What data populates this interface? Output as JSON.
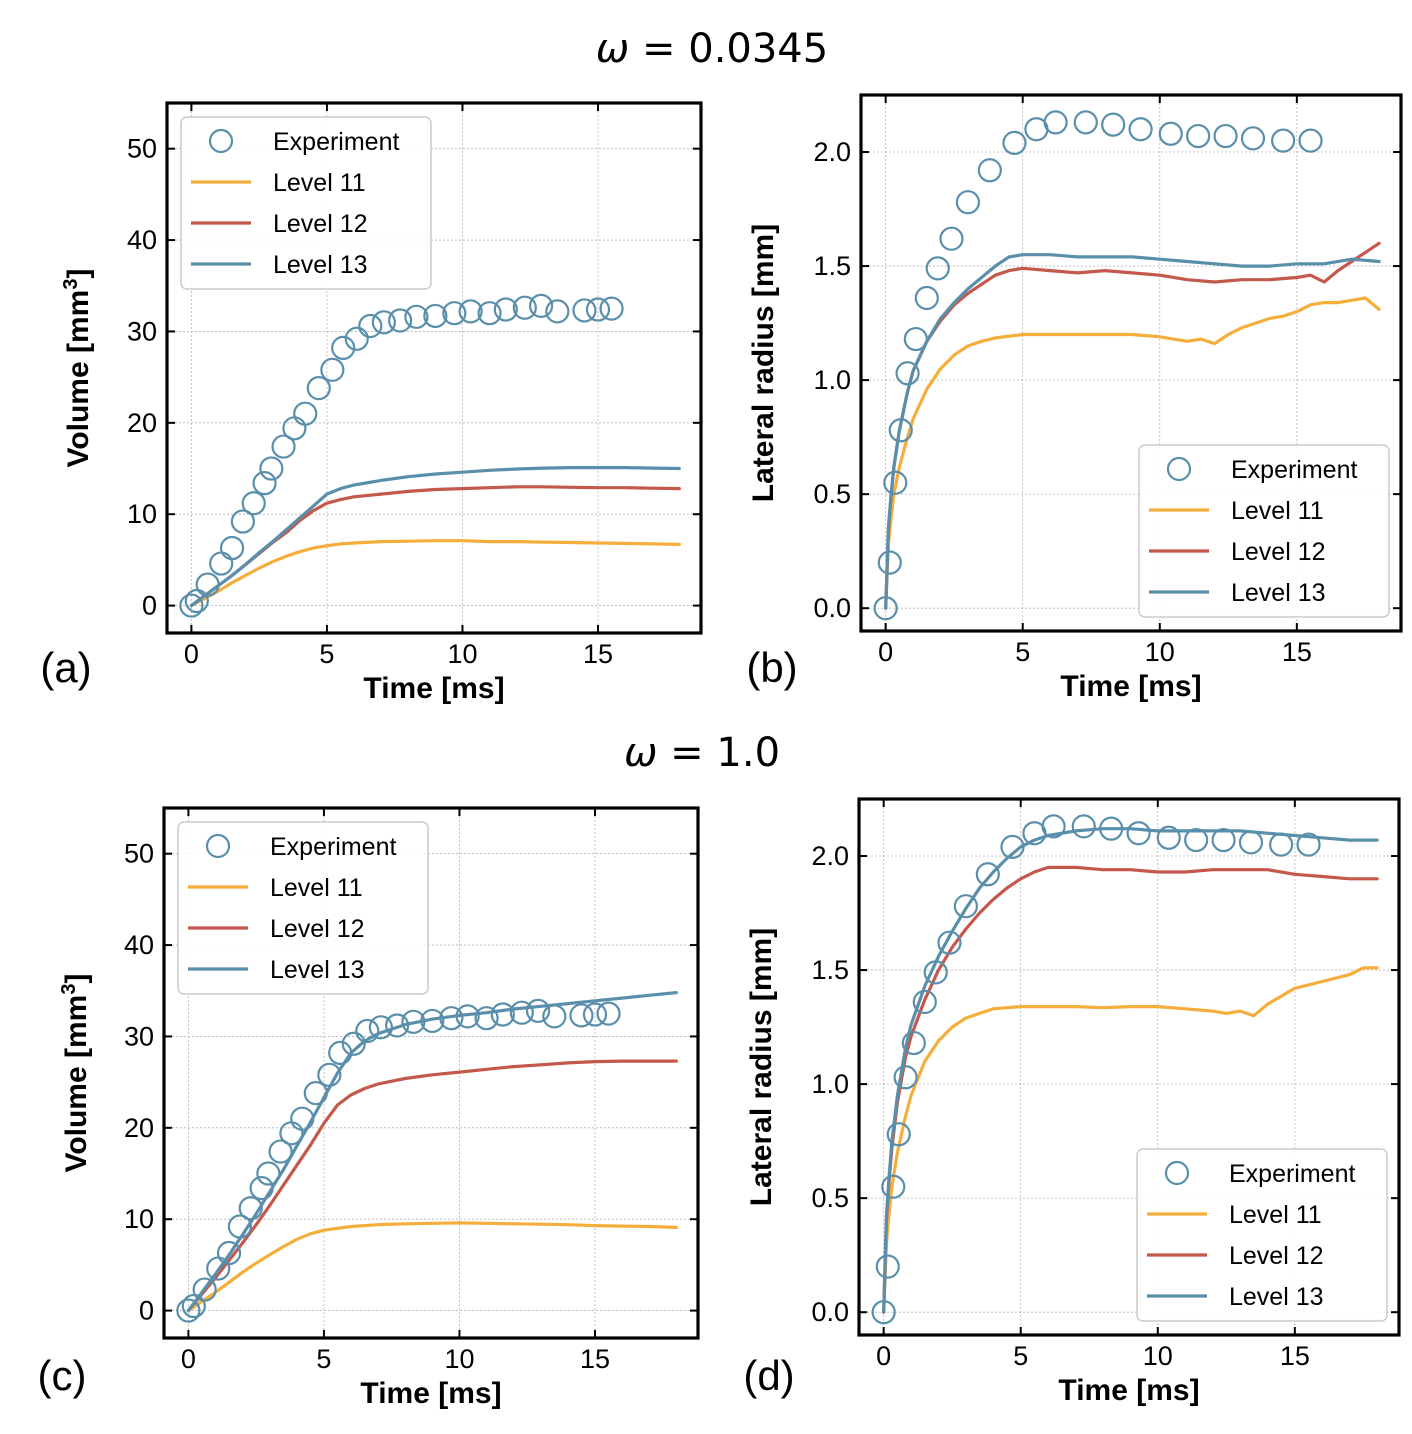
{
  "figure": {
    "titles": [
      {
        "omega_symbol": "ω",
        "text": " = 0.0345"
      },
      {
        "omega_symbol": "ω",
        "text": " = 1.0"
      }
    ]
  },
  "colors": {
    "experiment": "#5a8fab",
    "level11": "#f5ae3c",
    "level12": "#c4584a",
    "level13": "#5a8fab",
    "grid": "#b4b4b4",
    "axes": "#000000"
  },
  "chart_data": [
    {
      "panel": "(a)",
      "type": "line",
      "xlabel": "Time [ms]",
      "ylabel": "Volume [mm",
      "ylabel_sup": "3",
      "ylabel_close": "]",
      "xlim": [
        -0.9,
        18.8
      ],
      "ylim": [
        -3,
        55
      ],
      "xticks": [
        0,
        5,
        10,
        15
      ],
      "yticks": [
        0,
        10,
        20,
        30,
        40,
        50
      ],
      "legend_position": "top-left",
      "legend": [
        "Experiment",
        "Level 11",
        "Level 12",
        "Level 13"
      ],
      "experiment": {
        "name": "Experiment",
        "x": [
          0,
          0.2,
          0.6,
          1.1,
          1.5,
          1.9,
          2.3,
          2.7,
          2.95,
          3.4,
          3.8,
          4.2,
          4.7,
          5.2,
          5.6,
          6.1,
          6.6,
          7.1,
          7.7,
          8.3,
          9.0,
          9.7,
          10.3,
          11.0,
          11.6,
          12.3,
          12.9,
          13.5,
          14.5,
          15.0,
          15.5
        ],
        "y": [
          0,
          0.5,
          2.3,
          4.6,
          6.3,
          9.2,
          11.2,
          13.4,
          15.0,
          17.4,
          19.4,
          21.0,
          23.8,
          25.8,
          28.2,
          29.2,
          30.6,
          31.0,
          31.2,
          31.6,
          31.7,
          32.0,
          32.2,
          32.0,
          32.4,
          32.6,
          32.8,
          32.2,
          32.3,
          32.4,
          32.5
        ]
      },
      "series": [
        {
          "name": "Level 11",
          "x": [
            0,
            0.5,
            1,
            1.5,
            2,
            2.5,
            3,
            3.5,
            4,
            4.5,
            5,
            5.5,
            6,
            7,
            8,
            9,
            10,
            11,
            12,
            13,
            14,
            15,
            16,
            17,
            18
          ],
          "y": [
            0,
            0.8,
            1.6,
            2.5,
            3.3,
            4.1,
            4.8,
            5.4,
            5.9,
            6.3,
            6.55,
            6.75,
            6.85,
            7.0,
            7.05,
            7.1,
            7.1,
            7.0,
            7.0,
            6.95,
            6.9,
            6.85,
            6.8,
            6.75,
            6.7
          ]
        },
        {
          "name": "Level 12",
          "x": [
            0,
            0.5,
            1,
            1.5,
            2,
            2.5,
            3,
            3.5,
            4,
            4.5,
            5,
            5.5,
            6,
            7,
            8,
            9,
            10,
            11,
            12,
            13,
            14,
            15,
            16,
            17,
            18
          ],
          "y": [
            0,
            1.1,
            2.2,
            3.3,
            4.5,
            5.7,
            6.9,
            8.0,
            9.3,
            10.4,
            11.2,
            11.6,
            11.9,
            12.2,
            12.5,
            12.7,
            12.8,
            12.9,
            13.0,
            13.0,
            12.95,
            12.9,
            12.9,
            12.85,
            12.8
          ]
        },
        {
          "name": "Level 13",
          "x": [
            0,
            0.5,
            1,
            1.5,
            2,
            2.5,
            3,
            3.5,
            4,
            4.5,
            5,
            5.5,
            6,
            7,
            8,
            9,
            10,
            11,
            12,
            13,
            14,
            15,
            16,
            17,
            18
          ],
          "y": [
            0,
            1.1,
            2.2,
            3.3,
            4.5,
            5.8,
            7.0,
            8.3,
            9.6,
            10.9,
            12.2,
            12.8,
            13.2,
            13.7,
            14.1,
            14.4,
            14.6,
            14.8,
            14.95,
            15.05,
            15.1,
            15.1,
            15.1,
            15.05,
            15.0
          ]
        }
      ]
    },
    {
      "panel": "(b)",
      "type": "line",
      "xlabel": "Time [ms]",
      "ylabel": "Lateral radius [mm]",
      "xlim": [
        -0.9,
        18.8
      ],
      "ylim": [
        -0.1,
        2.25
      ],
      "xticks": [
        0,
        5,
        10,
        15
      ],
      "yticks": [
        0.0,
        0.5,
        1.0,
        1.5,
        2.0
      ],
      "legend_position": "bottom-right",
      "legend": [
        "Experiment",
        "Level 11",
        "Level 12",
        "Level 13"
      ],
      "experiment": {
        "name": "Experiment",
        "x": [
          0,
          0.15,
          0.35,
          0.55,
          0.8,
          1.1,
          1.5,
          1.9,
          2.4,
          3.0,
          3.8,
          4.7,
          5.5,
          6.2,
          7.3,
          8.3,
          9.3,
          10.4,
          11.4,
          12.4,
          13.4,
          14.5,
          15.5
        ],
        "y": [
          0,
          0.2,
          0.55,
          0.78,
          1.03,
          1.18,
          1.36,
          1.49,
          1.62,
          1.78,
          1.92,
          2.04,
          2.1,
          2.13,
          2.13,
          2.12,
          2.1,
          2.08,
          2.07,
          2.07,
          2.06,
          2.05,
          2.05
        ]
      },
      "series": [
        {
          "name": "Level 11",
          "x": [
            0,
            0.1,
            0.2,
            0.3,
            0.5,
            0.8,
            1,
            1.5,
            2,
            2.5,
            3,
            3.5,
            4,
            5,
            6,
            7,
            8,
            9,
            10,
            11,
            11.5,
            12,
            12.5,
            13,
            13.5,
            14,
            14.5,
            15,
            15.5,
            16,
            16.5,
            17,
            17.5,
            18
          ],
          "y": [
            0,
            0.28,
            0.4,
            0.5,
            0.62,
            0.75,
            0.83,
            0.96,
            1.05,
            1.11,
            1.15,
            1.17,
            1.185,
            1.2,
            1.2,
            1.2,
            1.2,
            1.2,
            1.19,
            1.17,
            1.18,
            1.16,
            1.2,
            1.23,
            1.25,
            1.27,
            1.28,
            1.3,
            1.33,
            1.34,
            1.34,
            1.35,
            1.36,
            1.31
          ]
        },
        {
          "name": "Level 12",
          "x": [
            0,
            0.1,
            0.2,
            0.3,
            0.5,
            0.8,
            1,
            1.5,
            2,
            2.5,
            3,
            3.5,
            4,
            4.5,
            5,
            6,
            7,
            8,
            9,
            10,
            11,
            12,
            13,
            14,
            15,
            15.5,
            16,
            16.5,
            17,
            17.5,
            18
          ],
          "y": [
            0,
            0.35,
            0.5,
            0.62,
            0.78,
            0.95,
            1.04,
            1.17,
            1.26,
            1.33,
            1.38,
            1.42,
            1.46,
            1.48,
            1.49,
            1.48,
            1.47,
            1.48,
            1.47,
            1.46,
            1.44,
            1.43,
            1.44,
            1.44,
            1.45,
            1.46,
            1.43,
            1.48,
            1.52,
            1.56,
            1.6
          ]
        },
        {
          "name": "Level 13",
          "x": [
            0,
            0.1,
            0.2,
            0.3,
            0.5,
            0.8,
            1,
            1.5,
            2,
            2.5,
            3,
            3.5,
            4,
            4.5,
            5,
            6,
            7,
            8,
            9,
            10,
            11,
            12,
            13,
            14,
            15,
            16,
            17,
            18
          ],
          "y": [
            0,
            0.35,
            0.5,
            0.62,
            0.78,
            0.95,
            1.04,
            1.17,
            1.27,
            1.34,
            1.4,
            1.45,
            1.5,
            1.54,
            1.55,
            1.55,
            1.54,
            1.54,
            1.54,
            1.53,
            1.52,
            1.51,
            1.5,
            1.5,
            1.51,
            1.51,
            1.53,
            1.52
          ]
        }
      ]
    },
    {
      "panel": "(c)",
      "type": "line",
      "xlabel": "Time [ms]",
      "ylabel": "Volume [mm",
      "ylabel_sup": "3",
      "ylabel_close": "]",
      "xlim": [
        -0.9,
        18.8
      ],
      "ylim": [
        -3,
        55
      ],
      "xticks": [
        0,
        5,
        10,
        15
      ],
      "yticks": [
        0,
        10,
        20,
        30,
        40,
        50
      ],
      "legend_position": "top-left",
      "legend": [
        "Experiment",
        "Level 11",
        "Level 12",
        "Level 13"
      ],
      "experiment": {
        "name": "Experiment",
        "x": [
          0,
          0.2,
          0.6,
          1.1,
          1.5,
          1.9,
          2.3,
          2.7,
          2.95,
          3.4,
          3.8,
          4.2,
          4.7,
          5.2,
          5.6,
          6.1,
          6.6,
          7.1,
          7.7,
          8.3,
          9.0,
          9.7,
          10.3,
          11.0,
          11.6,
          12.3,
          12.9,
          13.5,
          14.5,
          15.0,
          15.5
        ],
        "y": [
          0,
          0.5,
          2.3,
          4.6,
          6.3,
          9.2,
          11.2,
          13.4,
          15.0,
          17.4,
          19.4,
          21.0,
          23.8,
          25.8,
          28.2,
          29.2,
          30.6,
          31.0,
          31.2,
          31.6,
          31.7,
          32.0,
          32.2,
          32.0,
          32.4,
          32.6,
          32.8,
          32.2,
          32.3,
          32.4,
          32.5
        ]
      },
      "series": [
        {
          "name": "Level 11",
          "x": [
            0,
            0.5,
            1,
            1.5,
            2,
            2.5,
            3,
            3.5,
            4,
            4.5,
            5,
            5.5,
            6,
            7,
            8,
            9,
            10,
            11,
            12,
            13,
            14,
            15,
            16,
            17,
            18
          ],
          "y": [
            0,
            1.0,
            2.0,
            3.1,
            4.2,
            5.2,
            6.1,
            7.0,
            7.8,
            8.4,
            8.8,
            9.0,
            9.2,
            9.4,
            9.5,
            9.55,
            9.6,
            9.55,
            9.5,
            9.45,
            9.4,
            9.3,
            9.25,
            9.2,
            9.1
          ]
        },
        {
          "name": "Level 12",
          "x": [
            0,
            0.5,
            1,
            1.5,
            2,
            2.5,
            3,
            3.5,
            4,
            4.5,
            5,
            5.5,
            6,
            6.5,
            7,
            8,
            9,
            10,
            11,
            12,
            13,
            14,
            15,
            16,
            17,
            18
          ],
          "y": [
            0,
            1.8,
            3.6,
            5.5,
            7.4,
            9.4,
            11.5,
            13.7,
            15.9,
            18.1,
            20.5,
            22.5,
            23.6,
            24.3,
            24.8,
            25.4,
            25.8,
            26.1,
            26.4,
            26.7,
            26.9,
            27.1,
            27.25,
            27.3,
            27.3,
            27.3
          ]
        },
        {
          "name": "Level 13",
          "x": [
            0,
            0.5,
            1,
            1.5,
            2,
            2.5,
            3,
            3.5,
            4,
            4.5,
            5,
            5.5,
            6,
            6.5,
            7,
            8,
            9,
            10,
            11,
            12,
            13,
            14,
            15,
            16,
            17,
            18
          ],
          "y": [
            0,
            2.0,
            4.0,
            6.1,
            8.3,
            10.6,
            13.0,
            15.4,
            18.0,
            20.6,
            23.3,
            26.0,
            28.2,
            29.5,
            30.3,
            31.3,
            31.9,
            32.3,
            32.6,
            33.0,
            33.3,
            33.6,
            33.9,
            34.2,
            34.5,
            34.8
          ]
        }
      ]
    },
    {
      "panel": "(d)",
      "type": "line",
      "xlabel": "Time [ms]",
      "ylabel": "Lateral radius [mm]",
      "xlim": [
        -0.9,
        18.8
      ],
      "ylim": [
        -0.1,
        2.25
      ],
      "xticks": [
        0,
        5,
        10,
        15
      ],
      "yticks": [
        0.0,
        0.5,
        1.0,
        1.5,
        2.0
      ],
      "legend_position": "bottom-right",
      "legend": [
        "Experiment",
        "Level 11",
        "Level 12",
        "Level 13"
      ],
      "experiment": {
        "name": "Experiment",
        "x": [
          0,
          0.15,
          0.35,
          0.55,
          0.8,
          1.1,
          1.5,
          1.9,
          2.4,
          3.0,
          3.8,
          4.7,
          5.5,
          6.2,
          7.3,
          8.3,
          9.3,
          10.4,
          11.4,
          12.4,
          13.4,
          14.5,
          15.5
        ],
        "y": [
          0,
          0.2,
          0.55,
          0.78,
          1.03,
          1.18,
          1.36,
          1.49,
          1.62,
          1.78,
          1.92,
          2.04,
          2.1,
          2.13,
          2.13,
          2.12,
          2.1,
          2.08,
          2.07,
          2.07,
          2.06,
          2.05,
          2.05
        ]
      },
      "series": [
        {
          "name": "Level 11",
          "x": [
            0,
            0.1,
            0.2,
            0.3,
            0.5,
            0.8,
            1,
            1.5,
            2,
            2.5,
            3,
            3.5,
            4,
            5,
            6,
            7,
            8,
            9,
            10,
            11,
            12,
            12.5,
            13,
            13.5,
            14,
            15,
            16,
            17,
            17.5,
            18
          ],
          "y": [
            0,
            0.3,
            0.44,
            0.55,
            0.7,
            0.86,
            0.95,
            1.1,
            1.19,
            1.25,
            1.29,
            1.31,
            1.33,
            1.34,
            1.34,
            1.34,
            1.335,
            1.34,
            1.34,
            1.33,
            1.32,
            1.31,
            1.32,
            1.3,
            1.35,
            1.42,
            1.45,
            1.48,
            1.51,
            1.51
          ]
        },
        {
          "name": "Level 12",
          "x": [
            0,
            0.1,
            0.2,
            0.3,
            0.5,
            0.8,
            1,
            1.5,
            2,
            2.5,
            3,
            3.5,
            4,
            4.5,
            5,
            5.5,
            6,
            7,
            8,
            9,
            10,
            11,
            12,
            13,
            14,
            15,
            16,
            17,
            18
          ],
          "y": [
            0,
            0.4,
            0.58,
            0.72,
            0.92,
            1.12,
            1.21,
            1.37,
            1.5,
            1.6,
            1.68,
            1.75,
            1.81,
            1.86,
            1.9,
            1.93,
            1.95,
            1.95,
            1.94,
            1.94,
            1.93,
            1.93,
            1.94,
            1.94,
            1.94,
            1.92,
            1.91,
            1.9,
            1.9
          ]
        },
        {
          "name": "Level 13",
          "x": [
            0,
            0.1,
            0.2,
            0.3,
            0.5,
            0.8,
            1,
            1.5,
            2,
            2.5,
            3,
            3.5,
            4,
            4.5,
            5,
            5.5,
            6,
            7,
            8,
            9,
            10,
            11,
            12,
            13,
            14,
            15,
            16,
            17,
            18
          ],
          "y": [
            0,
            0.42,
            0.6,
            0.75,
            0.95,
            1.16,
            1.26,
            1.43,
            1.56,
            1.67,
            1.77,
            1.86,
            1.93,
            1.99,
            2.04,
            2.07,
            2.09,
            2.11,
            2.12,
            2.12,
            2.11,
            2.11,
            2.11,
            2.11,
            2.1,
            2.09,
            2.08,
            2.07,
            2.07
          ]
        }
      ]
    }
  ]
}
